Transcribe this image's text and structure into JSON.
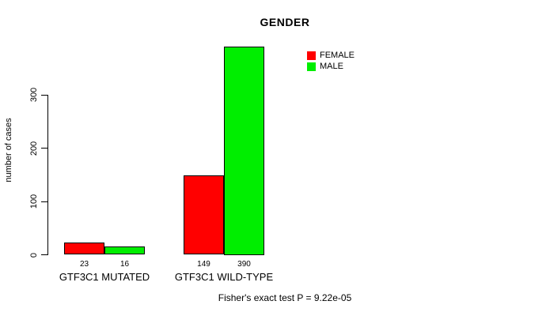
{
  "chart_data": {
    "type": "bar",
    "title": "GENDER",
    "ylabel": "number of cases",
    "xlabel": "",
    "categories": [
      "GTF3C1 MUTATED",
      "GTF3C1 WILD-TYPE"
    ],
    "series": [
      {
        "name": "FEMALE",
        "color": "#ff0000",
        "values": [
          23,
          149
        ]
      },
      {
        "name": "MALE",
        "color": "#00ee00",
        "values": [
          16,
          390
        ]
      }
    ],
    "bar_value_labels": [
      [
        "23",
        "16"
      ],
      [
        "149",
        "390"
      ]
    ],
    "yticks": [
      0,
      100,
      200,
      300
    ],
    "ylim": [
      0,
      390
    ],
    "grid": false,
    "legend_position": "top-right",
    "annotation": "Fisher's exact test P = 9.22e-05"
  }
}
